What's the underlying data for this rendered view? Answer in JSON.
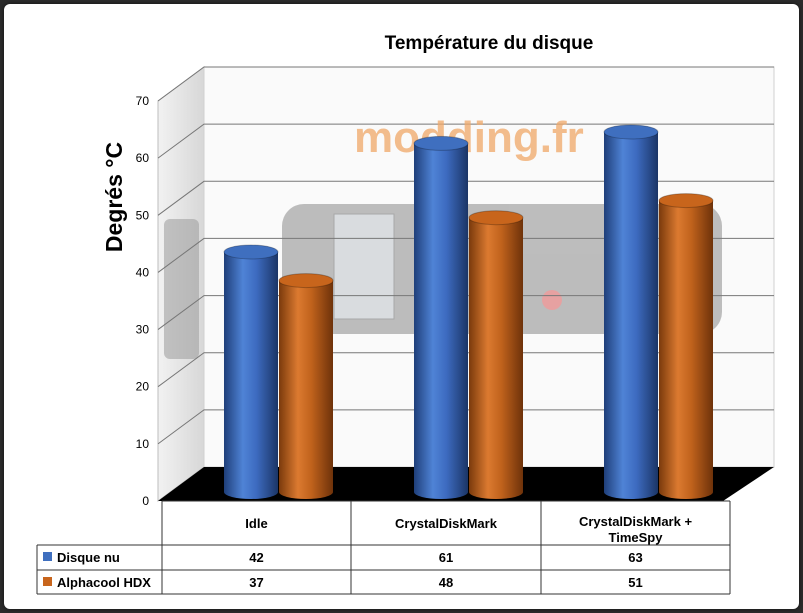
{
  "watermark": "modding.fr",
  "chart_data": {
    "type": "bar",
    "title": "Température du disque",
    "ylabel": "Degrés °C",
    "xlabel": "",
    "ylim": [
      0,
      70
    ],
    "yticks": [
      0,
      10,
      20,
      30,
      40,
      50,
      60,
      70
    ],
    "grid": true,
    "legend": "data-table",
    "categories": [
      "Idle",
      "CrystalDiskMark",
      "CrystalDiskMark + TimeSpy"
    ],
    "series": [
      {
        "name": "Disque nu",
        "values": [
          42,
          61,
          63
        ],
        "color": "#3f6fbf"
      },
      {
        "name": "Alphacool HDX",
        "values": [
          37,
          48,
          51
        ],
        "color": "#c8651c"
      }
    ]
  }
}
